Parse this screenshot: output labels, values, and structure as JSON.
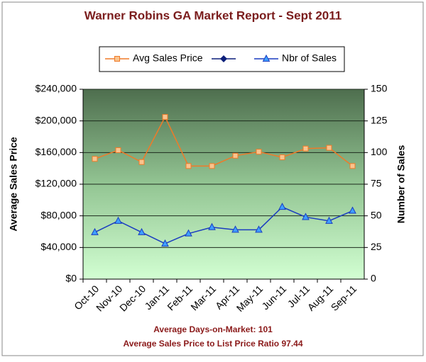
{
  "chart_data": {
    "type": "line",
    "title": "Warner Robins GA Market Report - Sept 2011",
    "categories": [
      "Oct-10",
      "Nov-10",
      "Dec-10",
      "Jan-11",
      "Feb-11",
      "Mar-11",
      "Apr-11",
      "May-11",
      "Jun-11",
      "Jul-11",
      "Aug-11",
      "Sep-11"
    ],
    "series": [
      {
        "name": "Avg Sales Price",
        "color": "#f07a28",
        "marker_color": "#f9c48e",
        "marker": "square",
        "values": [
          152000,
          163000,
          148000,
          205000,
          143000,
          143000,
          156000,
          161000,
          154000,
          165000,
          166000,
          143000
        ]
      },
      {
        "name": "Nbr of Sales",
        "color": "#1a3cc0",
        "marker_color": "#3fa0ff",
        "marker": "triangle",
        "axis": "y2",
        "values": [
          37,
          46,
          37,
          28,
          36,
          41,
          39,
          39,
          57,
          49,
          46,
          54
        ]
      }
    ],
    "ylabel": "Average Sales Price",
    "y2label": "Number of Sales",
    "ylim": [
      0,
      240000
    ],
    "yticks": [
      {
        "value": 0,
        "label": "$0"
      },
      {
        "value": 40000,
        "label": "$40,000"
      },
      {
        "value": 80000,
        "label": "$80,000"
      },
      {
        "value": 120000,
        "label": "$120,000"
      },
      {
        "value": 160000,
        "label": "$160,000"
      },
      {
        "value": 200000,
        "label": "$200,000"
      },
      {
        "value": 240000,
        "label": "$240,000"
      }
    ],
    "y2lim": [
      0,
      150
    ],
    "y2ticks": [
      0,
      25,
      50,
      75,
      100,
      125,
      150
    ],
    "grid": true,
    "annotations": [
      "Average Days-on-Market: 101",
      "Average Sales Price to List Price Ratio 97.44"
    ]
  }
}
